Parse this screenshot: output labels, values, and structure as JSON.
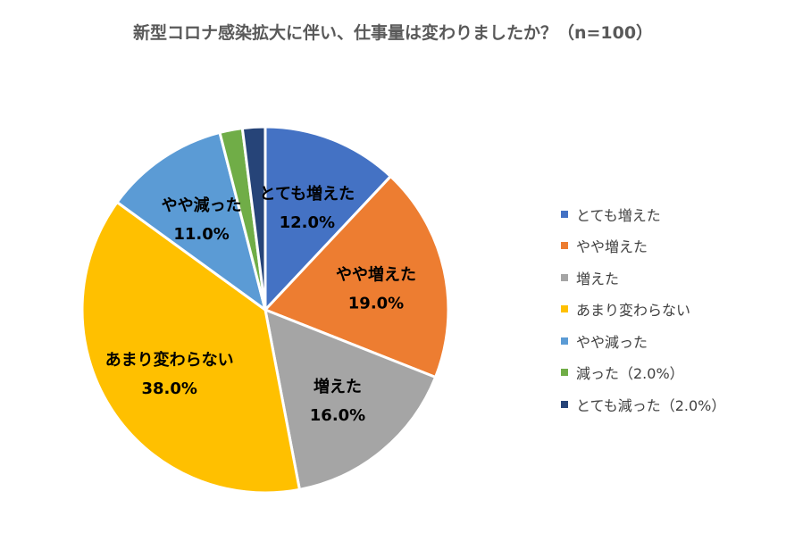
{
  "chart_data": {
    "type": "pie",
    "title": "新型コロナ感染拡大に伴い、仕事量は変わりましたか？（n=100）",
    "slices": [
      {
        "name": "とても増えた",
        "value": 12.0,
        "label": "12.0%",
        "color": "#4472C4",
        "show_label": true
      },
      {
        "name": "やや増えた",
        "value": 19.0,
        "label": "19.0%",
        "color": "#ED7D31",
        "show_label": true
      },
      {
        "name": "増えた",
        "value": 16.0,
        "label": "16.0%",
        "color": "#A5A5A5",
        "show_label": true
      },
      {
        "name": "あまり変わらない",
        "value": 38.0,
        "label": "38.0%",
        "color": "#FFC000",
        "show_label": true
      },
      {
        "name": "やや減った",
        "value": 11.0,
        "label": "11.0%",
        "color": "#5B9BD5",
        "show_label": true
      },
      {
        "name": "減った",
        "value": 2.0,
        "label": "2.0%",
        "color": "#70AD47",
        "show_label": false
      },
      {
        "name": "とても減った",
        "value": 2.0,
        "label": "2.0%",
        "color": "#264478",
        "show_label": false
      }
    ],
    "legend": {
      "position": "right",
      "items": [
        "とても増えた",
        "やや増えた",
        "増えた",
        "あまり変わらない",
        "やや減った",
        "減った（2.0%）",
        "とても減った（2.0%）"
      ]
    }
  }
}
